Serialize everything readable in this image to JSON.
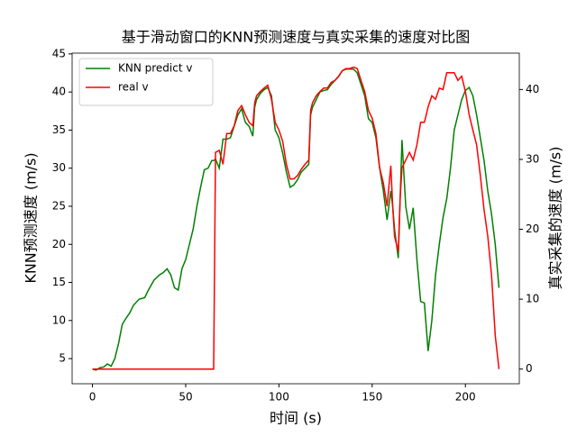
{
  "chart_data": {
    "type": "line",
    "title": "基于滑动窗口的KNN预测速度与真实采集的速度对比图",
    "x_label": "时间 (s)",
    "y_label": "KNN预测速度 (m/s)",
    "y2_label": "真实采集的速度 (m/s)",
    "x": [
      0,
      2,
      4,
      6,
      8,
      10,
      12,
      14,
      16,
      18,
      20,
      22,
      25,
      28,
      30,
      33,
      36,
      38,
      40,
      42,
      44,
      46,
      48,
      50,
      52,
      54,
      56,
      58,
      60,
      62,
      64,
      65,
      66,
      68,
      70,
      72,
      74,
      76,
      78,
      80,
      82,
      84,
      86,
      87,
      88,
      90,
      92,
      94,
      96,
      98,
      100,
      102,
      104,
      106,
      108,
      110,
      112,
      114,
      116,
      117,
      118,
      120,
      122,
      124,
      126,
      128,
      130,
      132,
      134,
      136,
      138,
      140,
      142,
      144,
      146,
      148,
      150,
      152,
      154,
      156,
      158,
      160,
      161,
      162,
      164,
      165,
      166,
      168,
      170,
      172,
      174,
      176,
      178,
      180,
      182,
      184,
      186,
      188,
      190,
      192,
      194,
      196,
      198,
      200,
      202,
      204,
      206,
      208,
      210,
      212,
      214,
      216,
      218
    ],
    "series": [
      {
        "name": "KNN predict v",
        "color": "#008000",
        "values": [
          3.6,
          3.5,
          3.8,
          3.9,
          4.3,
          4.0,
          5.0,
          7.0,
          9.5,
          10.3,
          11.0,
          12.0,
          12.8,
          13.0,
          14.0,
          15.3,
          16.0,
          16.3,
          16.8,
          16.0,
          14.3,
          14.0,
          16.8,
          18.0,
          20.0,
          22.0,
          25.0,
          27.5,
          29.8,
          30.0,
          31.0,
          31.0,
          31.2,
          30.0,
          33.8,
          33.8,
          34.0,
          35.5,
          37.0,
          37.8,
          36.0,
          35.5,
          34.2,
          38.0,
          39.0,
          39.8,
          40.3,
          40.6,
          39.5,
          35.0,
          34.0,
          32.0,
          29.5,
          27.5,
          27.8,
          28.5,
          29.5,
          30.0,
          30.5,
          37.0,
          38.0,
          39.0,
          40.0,
          40.2,
          40.3,
          41.0,
          41.5,
          42.0,
          42.8,
          43.0,
          43.0,
          43.0,
          42.5,
          41.0,
          39.5,
          36.5,
          36.0,
          34.0,
          30.0,
          27.0,
          23.2,
          27.0,
          25.0,
          22.0,
          18.2,
          26.0,
          33.7,
          25.0,
          22.0,
          24.8,
          18.0,
          12.5,
          12.3,
          6.0,
          10.0,
          16.0,
          20.0,
          23.5,
          26.0,
          30.0,
          35.0,
          37.0,
          39.0,
          40.2,
          40.6,
          39.5,
          37.0,
          34.0,
          31.0,
          27.0,
          24.0,
          20.0,
          14.3
        ]
      },
      {
        "name": "real v",
        "color": "#ff0000",
        "axis": "y2",
        "values": [
          0,
          0,
          0,
          0,
          0,
          0,
          0,
          0,
          0,
          0,
          0,
          0,
          0,
          0,
          0,
          0,
          0,
          0,
          0,
          0,
          0,
          0,
          0,
          0,
          0,
          0,
          0,
          0,
          0,
          0,
          0,
          0,
          31.0,
          31.3,
          29.3,
          33.7,
          33.7,
          34.8,
          37.0,
          37.7,
          36.4,
          35.3,
          34.8,
          38.1,
          39.1,
          39.7,
          40.2,
          40.6,
          38.6,
          35.3,
          34.2,
          32.6,
          29.3,
          27.2,
          27.2,
          27.7,
          28.6,
          29.3,
          29.9,
          37.0,
          38.1,
          39.1,
          39.7,
          40.2,
          40.2,
          41.0,
          41.3,
          41.9,
          42.7,
          43.0,
          43.0,
          43.2,
          43.0,
          41.3,
          39.7,
          37.0,
          35.9,
          33.7,
          28.8,
          26.6,
          23.3,
          29.1,
          23.3,
          19.0,
          16.8,
          24.4,
          28.8,
          29.9,
          31.0,
          29.9,
          32.1,
          35.3,
          35.3,
          37.5,
          39.1,
          38.6,
          40.2,
          40.0,
          42.4,
          42.4,
          42.4,
          41.3,
          41.9,
          39.7,
          36.4,
          34.2,
          32.1,
          27.7,
          22.8,
          19.0,
          13.5,
          4.8,
          0.0
        ]
      }
    ],
    "xlim": [
      -10.9,
      228.9
    ],
    "xticks": [
      0,
      50,
      100,
      150,
      200
    ],
    "ylim": [
      1.7,
      45.1
    ],
    "yticks": [
      5,
      10,
      15,
      20,
      25,
      30,
      35,
      40,
      45
    ],
    "y2lim": [
      -2.1,
      45.2
    ],
    "y2ticks": [
      0,
      10,
      20,
      30,
      40
    ],
    "legend": "upper left"
  }
}
